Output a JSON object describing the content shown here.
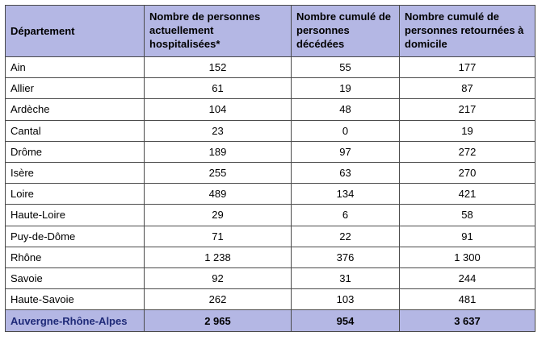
{
  "table": {
    "headers": [
      "Département",
      "Nombre de personnes actuellement hospitalisées*",
      "Nombre cumulé de personnes décédées",
      "Nombre cumulé de personnes retournées à domicile"
    ],
    "rows": [
      {
        "dept": "Ain",
        "hosp": "152",
        "deces": "55",
        "retour": "177"
      },
      {
        "dept": "Allier",
        "hosp": "61",
        "deces": "19",
        "retour": "87"
      },
      {
        "dept": "Ardèche",
        "hosp": "104",
        "deces": "48",
        "retour": "217"
      },
      {
        "dept": "Cantal",
        "hosp": "23",
        "deces": "0",
        "retour": "19"
      },
      {
        "dept": "Drôme",
        "hosp": "189",
        "deces": "97",
        "retour": "272"
      },
      {
        "dept": "Isère",
        "hosp": "255",
        "deces": "63",
        "retour": "270"
      },
      {
        "dept": "Loire",
        "hosp": "489",
        "deces": "134",
        "retour": "421"
      },
      {
        "dept": "Haute-Loire",
        "hosp": "29",
        "deces": "6",
        "retour": "58"
      },
      {
        "dept": "Puy-de-Dôme",
        "hosp": "71",
        "deces": "22",
        "retour": "91"
      },
      {
        "dept": "Rhône",
        "hosp": "1 238",
        "deces": "376",
        "retour": "1 300"
      },
      {
        "dept": "Savoie",
        "hosp": "92",
        "deces": "31",
        "retour": "244"
      },
      {
        "dept": "Haute-Savoie",
        "hosp": "262",
        "deces": "103",
        "retour": "481"
      }
    ],
    "total": {
      "dept": "Auvergne-Rhône-Alpes",
      "hosp": "2 965",
      "deces": "954",
      "retour": "3 637"
    }
  },
  "colors": {
    "header_bg": "#b4b7e4",
    "total_label": "#1f2a78",
    "border": "#4a4a4a"
  }
}
